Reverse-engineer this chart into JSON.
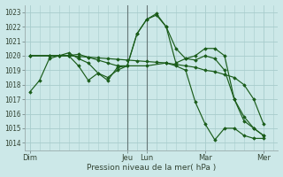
{
  "bg_color": "#cce8e8",
  "grid_color": "#a8cccc",
  "line_color": "#1a5c1a",
  "marker_color": "#1a5c1a",
  "ylabel_values": [
    1014,
    1015,
    1016,
    1017,
    1018,
    1019,
    1020,
    1021,
    1022,
    1023
  ],
  "ylim": [
    1013.5,
    1023.5
  ],
  "xlabel": "Pression niveau de la mer( hPa )",
  "xtick_labels": [
    "Dim",
    "Jeu",
    "Lun",
    "Mar",
    "Mer"
  ],
  "xtick_positions": [
    0,
    10,
    12,
    18,
    24
  ],
  "xlim": [
    -0.5,
    25.5
  ],
  "vlines_x": [
    10,
    12
  ],
  "vlines_color": "#667777",
  "lines": [
    {
      "x": [
        0,
        1,
        2,
        3,
        4,
        5,
        6,
        7,
        8,
        9,
        10,
        11,
        12,
        13,
        14,
        15,
        16,
        17,
        18,
        19,
        20,
        21,
        22,
        23,
        24
      ],
      "y": [
        1017.5,
        1018.3,
        1019.8,
        1020.0,
        1020.0,
        1020.1,
        1019.9,
        1019.7,
        1019.5,
        1019.3,
        1019.3,
        1021.5,
        1022.5,
        1022.8,
        1022.0,
        1020.5,
        1019.8,
        1019.7,
        1020.0,
        1019.8,
        1019.0,
        1017.0,
        1015.5,
        1015.0,
        1014.5
      ]
    },
    {
      "x": [
        0,
        2,
        3,
        4,
        5,
        6,
        7,
        8,
        9,
        10,
        11,
        12,
        13,
        14,
        15,
        16,
        17,
        18,
        19,
        20,
        21,
        22,
        23,
        24
      ],
      "y": [
        1020.0,
        1020.0,
        1020.0,
        1020.0,
        1019.95,
        1019.9,
        1019.85,
        1019.8,
        1019.75,
        1019.7,
        1019.65,
        1019.6,
        1019.55,
        1019.5,
        1019.4,
        1019.3,
        1019.2,
        1019.0,
        1018.9,
        1018.7,
        1018.5,
        1018.0,
        1017.0,
        1015.3
      ]
    },
    {
      "x": [
        0,
        2,
        3,
        4,
        5,
        6,
        7,
        8,
        9,
        10,
        11,
        12,
        13,
        14,
        15,
        16,
        17,
        18,
        19,
        20,
        21,
        22,
        23,
        24
      ],
      "y": [
        1020.0,
        1020.0,
        1020.0,
        1020.2,
        1019.8,
        1019.5,
        1018.8,
        1018.3,
        1019.2,
        1019.3,
        1021.5,
        1022.5,
        1022.9,
        1022.0,
        1019.5,
        1019.8,
        1020.0,
        1020.5,
        1020.5,
        1020.0,
        1017.0,
        1015.8,
        1015.0,
        1014.5
      ]
    },
    {
      "x": [
        0,
        2,
        4,
        5,
        6,
        7,
        8,
        9,
        10,
        12,
        14,
        15,
        16,
        17,
        18,
        19,
        20,
        21,
        22,
        23,
        24
      ],
      "y": [
        1020.0,
        1020.0,
        1020.0,
        1019.3,
        1018.3,
        1018.8,
        1018.5,
        1019.0,
        1019.3,
        1019.3,
        1019.5,
        1019.3,
        1019.0,
        1016.8,
        1015.3,
        1014.2,
        1015.0,
        1015.0,
        1014.5,
        1014.3,
        1014.3
      ]
    }
  ]
}
